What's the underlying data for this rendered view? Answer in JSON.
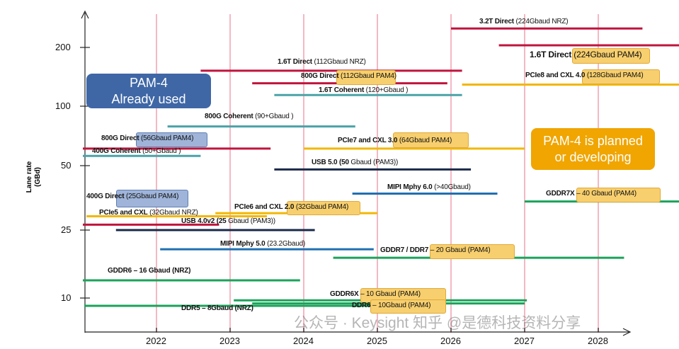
{
  "chart_data": {
    "type": "timeline",
    "title": "",
    "ylabel": "Lane rate (GBd)",
    "xlabel": "",
    "y_scale": "log",
    "y_ticks": [
      10,
      25,
      50,
      100,
      200
    ],
    "x_ticks": [
      2022,
      2023,
      2024,
      2025,
      2026,
      2027,
      2028
    ],
    "grid": "vertical year lines",
    "series": [
      {
        "bold": "3.2T Direct",
        "rest": " (224Gbaud NRZ)",
        "hl": "",
        "color": "#c0143c",
        "rate": 250,
        "start": 2026.0,
        "end": 2028.6
      },
      {
        "bold": "1.6T Direct ",
        "rest": "(224Gbaud PAM4)",
        "hl": "orange",
        "color": "#c0143c",
        "rate": 205,
        "start": 2026.65,
        "end": 2029.1
      },
      {
        "bold": "1.6T Direct",
        "rest": " (112Gbaud NRZ)",
        "hl": "",
        "color": "#c0143c",
        "rate": 152,
        "start": 2022.6,
        "end": 2026.15
      },
      {
        "bold": "800G Direct",
        "rest": " (112Gbaud PAM4)",
        "hl": "orange",
        "color": "#c0143c",
        "rate": 131,
        "start": 2023.3,
        "end": 2025.95
      },
      {
        "bold": "PCIe8 and CXL 4.0",
        "rest": " (128Gbaud PAM4)",
        "hl": "orange",
        "color": "#f2b705",
        "rate": 129,
        "start": 2026.15,
        "end": 2029.1
      },
      {
        "bold": "1.6T Coherent",
        "rest": " (120+Gbaud )",
        "hl": "",
        "color": "#4aa3a8",
        "rate": 114,
        "start": 2023.6,
        "end": 2026.15
      },
      {
        "bold": "800G Coherent",
        "rest": " (90+Gbaud )",
        "hl": "",
        "color": "#4aa3a8",
        "rate": 79,
        "start": 2022.15,
        "end": 2024.7
      },
      {
        "bold": "800G Direct",
        "rest": " (56Gbaud PAM4)",
        "hl": "blue",
        "color": "#c0143c",
        "rate": 61,
        "start": 2021.0,
        "end": 2023.55
      },
      {
        "bold": "400G Coherent",
        "rest": " (50+Gbaud )",
        "hl": "",
        "color": "#4aa3a8",
        "rate": 56,
        "start": 2021.0,
        "end": 2022.6
      },
      {
        "bold": "PCIe7 and CXL 3.0",
        "rest": " (64Gbaud PAM4)",
        "hl": "orange",
        "color": "#f2b705",
        "rate": 61,
        "start": 2024.0,
        "end": 2027.0
      },
      {
        "bold": "USB 5.0 (50",
        "rest": " Gbaud (PAM3))",
        "hl": "",
        "color": "#1a2a4a",
        "rate": 48,
        "start": 2023.6,
        "end": 2026.27
      },
      {
        "bold": "MIPI Mphy 6.0",
        "rest": " (>40Gbaud)",
        "hl": "",
        "color": "#1f6fb2",
        "rate": 37,
        "start": 2024.66,
        "end": 2026.63
      },
      {
        "bold": "GDDR7X",
        "rest": " – 40 Gbaud (PAM4)",
        "hl": "orange",
        "color": "#1aa35a",
        "rate": 34,
        "start": 2027.0,
        "end": 2029.1
      },
      {
        "bold": "PCIe6 and CXL 2.0",
        "rest": " (32Gbaud PAM4)",
        "hl": "orange",
        "color": "#f2b705",
        "rate": 30,
        "start": 2022.8,
        "end": 2025.0
      },
      {
        "bold": "PCIe5 and CXL",
        "rest": " (32Gbaud NRZ)",
        "hl": "",
        "color": "#f2b705",
        "rate": 29,
        "start": 2021.05,
        "end": 2023.5
      },
      {
        "bold": "400G Direct",
        "rest": " (25Gbaud PAM4)",
        "hl": "blue",
        "color": "#c0143c",
        "rate": 26.5,
        "start": 2021.0,
        "end": 2022.85
      },
      {
        "bold": "USB 4.0v2 (25",
        "rest": " Gbaud (PAM3))",
        "hl": "",
        "color": "#1a2a4a",
        "rate": 25,
        "start": 2021.45,
        "end": 2024.15
      },
      {
        "bold": "MIPI Mphy 5.0",
        "rest": " (23.2Gbaud)",
        "hl": "",
        "color": "#1f6fb2",
        "rate": 19.3,
        "start": 2022.05,
        "end": 2024.95
      },
      {
        "bold": "GDDR7 / DDR7",
        "rest": " – 20 Gbaud (PAM4)",
        "hl": "orange",
        "color": "#1aa35a",
        "rate": 17.2,
        "start": 2024.4,
        "end": 2028.35
      },
      {
        "bold": "GDDR6 – 16 Gbaud (NRZ)",
        "rest": "",
        "hl": "",
        "color": "#1aa35a",
        "rate": 12.7,
        "start": 2021.0,
        "end": 2023.95
      },
      {
        "bold": "GDDR6X",
        "rest": " – 10 Gbaud (PAM4)",
        "hl": "orange",
        "color": "#1aa35a",
        "rate": 9.7,
        "start": 2023.05,
        "end": 2027.03
      },
      {
        "bold": "DDR6",
        "rest": " – 10Gbaud (PAM4)",
        "hl": "orange",
        "color": "#1aa35a",
        "rate": 9.3,
        "start": 2023.3,
        "end": 2027.0
      },
      {
        "bold": "DDR5 – 8Gbaud (NRZ)",
        "rest": "",
        "hl": "",
        "color": "#1aa35a",
        "rate": 9.0,
        "start": 2021.02,
        "end": 2025.03
      }
    ],
    "annotations": [
      {
        "lines": [
          "PAM-4",
          "Already used"
        ],
        "color": "#3f67a6"
      },
      {
        "lines": [
          "PAM-4 is planned",
          "or developing"
        ],
        "color": "#f0a500"
      }
    ]
  },
  "watermark": "公众号 · Keysight 知乎 @是德科技资料分享"
}
